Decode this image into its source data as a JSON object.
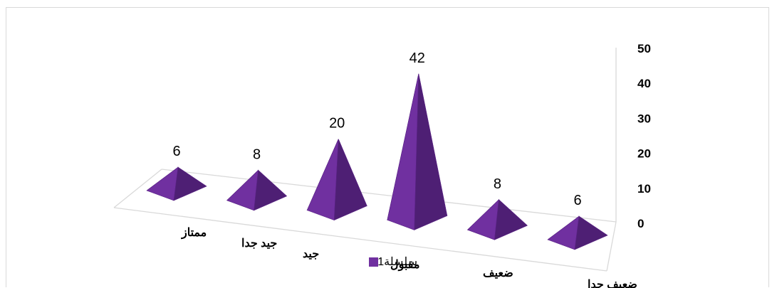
{
  "chart_data": {
    "type": "bar",
    "style": "3d-pyramid",
    "categories": [
      "ممتاز",
      "جيد جدا",
      "جيد",
      "مقبول",
      "ضعيف",
      "ضعيف جدا"
    ],
    "series": [
      {
        "name": "سلسلة1",
        "values": [
          6,
          8,
          20,
          42,
          8,
          6
        ]
      }
    ],
    "ylim": [
      0,
      50
    ],
    "yticks": [
      "0",
      "10",
      "20",
      "30",
      "40",
      "50"
    ],
    "grid": false,
    "legend": "bottom",
    "colors": {
      "series": "#7030a0",
      "series_dark": "#4e1f74",
      "series_light": "#9a5cd0",
      "floor_line": "#d9d9d9"
    }
  }
}
